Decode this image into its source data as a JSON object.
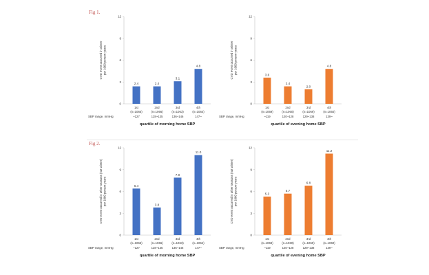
{
  "figures": [
    {
      "label": "Fig 1."
    },
    {
      "label": "Fig 2."
    }
  ],
  "colors": {
    "morning": "#4472c4",
    "evening": "#ed7d31",
    "fig_label": "#c0504d"
  },
  "chart_data": [
    {
      "type": "bar",
      "ylabel": "CVD event occurred in winter\nper 1000 person-years",
      "xlabel": "quartile of morning home SBP",
      "range_label": "SBP range, mmHg",
      "categories": [
        "1st",
        "2nd",
        "3rd",
        "4th"
      ],
      "counts": [
        "(n=1065)",
        "(n=1066)",
        "(n=1063)",
        "(n=1064)"
      ],
      "ranges": [
        "~127",
        "128~135",
        "136~146",
        "147~"
      ],
      "values": [
        2.4,
        2.4,
        3.1,
        4.8
      ],
      "value_labels": [
        "2.4",
        "2.4",
        "3.1",
        "4.8"
      ],
      "ylim": [
        0,
        12
      ],
      "yticks": [
        0,
        3,
        6,
        9,
        12
      ],
      "color": "#4472c4"
    },
    {
      "type": "bar",
      "ylabel": "CVD event occurred in winter\nper 1000 person-years",
      "xlabel": "quartile of evening home SBP",
      "range_label": "SBP range, mmHg",
      "categories": [
        "1st",
        "2nd",
        "3rd",
        "4th"
      ],
      "counts": [
        "(n=1069)",
        "(n=1060)",
        "(n=1069)",
        "(n=1060)"
      ],
      "ranges": [
        "~119",
        "120~128",
        "129~138",
        "139~"
      ],
      "values": [
        3.6,
        2.4,
        2.0,
        4.8
      ],
      "value_labels": [
        "3.6",
        "2.4",
        "2.0",
        "4.8"
      ],
      "ylim": [
        0,
        12
      ],
      "yticks": [
        0,
        3,
        6,
        9,
        12
      ],
      "color": "#ed7d31"
    },
    {
      "type": "bar",
      "ylabel": "CVD event occurred in other seasons (not winter)\nper 1000 person-years",
      "xlabel": "quartile of morning home SBP",
      "range_label": "SBP range, mmHg",
      "categories": [
        "1st",
        "2nd",
        "3rd",
        "4th"
      ],
      "counts": [
        "(n=1065)",
        "(n=1066)",
        "(n=1063)",
        "(n=1064)"
      ],
      "ranges": [
        "~127",
        "128~135",
        "136~146",
        "147~"
      ],
      "values": [
        6.4,
        3.8,
        7.9,
        11.0
      ],
      "value_labels": [
        "6.4",
        "3.8",
        "7.9",
        "11.0"
      ],
      "ylim": [
        0,
        12
      ],
      "yticks": [
        0,
        3,
        6,
        9,
        12
      ],
      "color": "#4472c4"
    },
    {
      "type": "bar",
      "ylabel": "CVD event occurred in other seasons (not winter)\nper 1000 person-years",
      "xlabel": "quartile of evening home SBP",
      "range_label": "SBP range, mmHg",
      "categories": [
        "1st",
        "2nd",
        "3rd",
        "4th"
      ],
      "counts": [
        "(n=1069)",
        "(n=1060)",
        "(n=1069)",
        "(n=1060)"
      ],
      "ranges": [
        "~119",
        "120~128",
        "129~138",
        "139~"
      ],
      "values": [
        5.3,
        5.7,
        6.8,
        11.2
      ],
      "value_labels": [
        "5.3",
        "5.7",
        "6.8",
        "11.2"
      ],
      "ylim": [
        0,
        12
      ],
      "yticks": [
        0,
        3,
        6,
        9,
        12
      ],
      "color": "#ed7d31"
    }
  ]
}
